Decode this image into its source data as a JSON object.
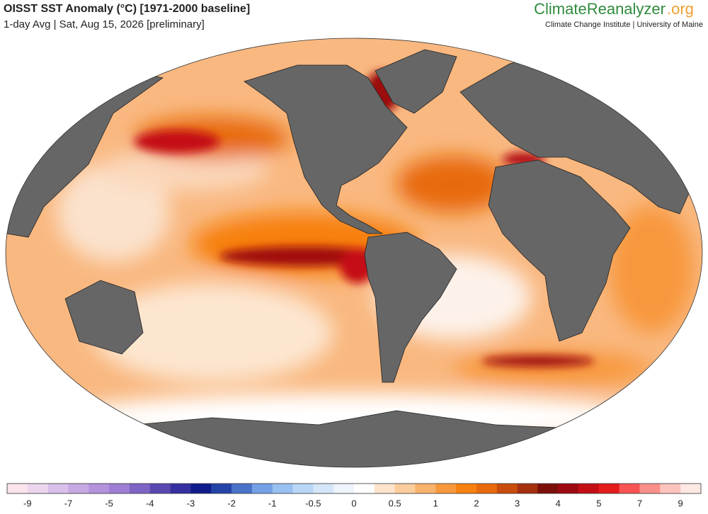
{
  "header": {
    "title": "OISST SST Anomaly (°C) [1971-2000 baseline]",
    "subtitle": "1-day Avg | Sat, Aug 15, 2026 [preliminary]",
    "brand_main": "ClimateReanalyzer",
    "brand_suffix": ".org",
    "institute": "Climate Change Institute | University of Maine"
  },
  "colorbar": {
    "colors": [
      "#fbe4ee",
      "#ecd6ee",
      "#d8c0ea",
      "#c6a8e2",
      "#b492dc",
      "#9e7ed4",
      "#7e64c4",
      "#5a48b0",
      "#3430a0",
      "#101c8c",
      "#2444a8",
      "#4a72c8",
      "#74a0e6",
      "#98c0f2",
      "#b8d6f6",
      "#d4e6f8",
      "#eef4fb",
      "#ffffff",
      "#fde4cc",
      "#fbcc9c",
      "#f9b26c",
      "#f8983c",
      "#f78010",
      "#e86a0c",
      "#c84c0c",
      "#a43010",
      "#7c1008",
      "#9c0a10",
      "#c40e16",
      "#e41c1c",
      "#f85454",
      "#fa9088",
      "#fcc4bc",
      "#fee8e4"
    ],
    "labels": [
      "-9",
      "-7",
      "-5",
      "-4",
      "-3",
      "-2",
      "-1",
      "-0.5",
      "0",
      "0.5",
      "1",
      "2",
      "3",
      "4",
      "5",
      "7",
      "9"
    ]
  }
}
